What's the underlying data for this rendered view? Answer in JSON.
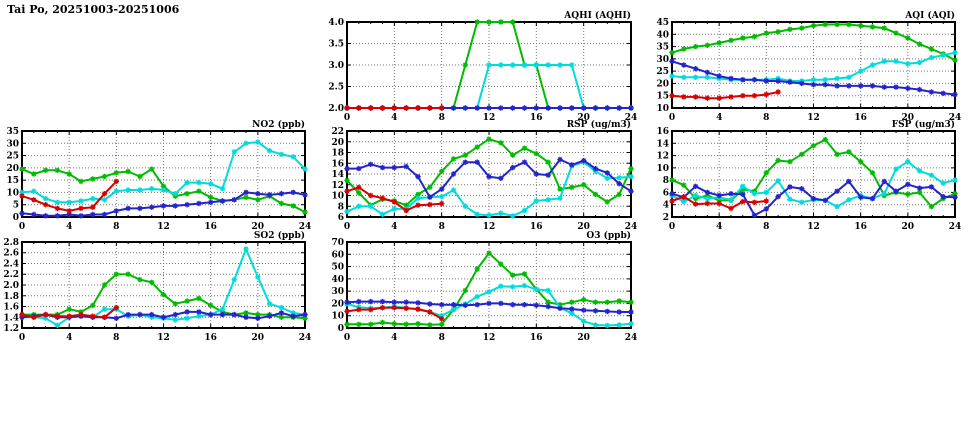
{
  "page": {
    "title": "Tai Po, 20251003-20251006"
  },
  "colors": {
    "red": "#d80000",
    "green": "#00bb00",
    "blue": "#2424cc",
    "cyan": "#00dcdc"
  },
  "chart_data": [
    {
      "type": "line",
      "key": "aqhi",
      "title": "AQHI (AQHI)",
      "xlabel": "",
      "ylabel": "",
      "grid": true,
      "legend": "none",
      "xlim": [
        0,
        24
      ],
      "ylim": [
        2.0,
        4.0
      ],
      "xticks": [
        0,
        4,
        8,
        12,
        16,
        20,
        24
      ],
      "yticks": [
        2.0,
        2.5,
        3.0,
        3.5,
        4.0
      ],
      "ytick_labels": [
        "2.0",
        "2.5",
        "3.0",
        "3.5",
        "4.0"
      ],
      "series": [
        {
          "name": "green",
          "color": "green",
          "start": 0,
          "values": [
            2,
            2,
            2,
            2,
            2,
            2,
            2,
            2,
            2,
            2,
            3,
            4,
            4,
            4,
            4,
            3,
            3,
            2,
            2,
            2,
            2,
            2,
            2,
            2,
            2
          ]
        },
        {
          "name": "cyan",
          "color": "cyan",
          "start": 0,
          "values": [
            2,
            2,
            2,
            2,
            2,
            2,
            2,
            2,
            2,
            2,
            2,
            2,
            3,
            3,
            3,
            3,
            3,
            3,
            3,
            3,
            2,
            2,
            2,
            2,
            2
          ]
        },
        {
          "name": "blue",
          "color": "blue",
          "start": 0,
          "values": [
            2,
            2,
            2,
            2,
            2,
            2,
            2,
            2,
            2,
            2,
            2,
            2,
            2,
            2,
            2,
            2,
            2,
            2,
            2,
            2,
            2,
            2,
            2,
            2,
            2
          ]
        },
        {
          "name": "red",
          "color": "red",
          "start": 0,
          "values": [
            2,
            2,
            2,
            2,
            2,
            2,
            2,
            2,
            2
          ]
        }
      ]
    },
    {
      "type": "line",
      "key": "aqi",
      "title": "AQI (AQI)",
      "xlabel": "",
      "ylabel": "",
      "grid": true,
      "legend": "none",
      "xlim": [
        0,
        24
      ],
      "ylim": [
        10,
        45
      ],
      "xticks": [
        0,
        4,
        8,
        12,
        16,
        20,
        24
      ],
      "yticks": [
        10,
        15,
        20,
        25,
        30,
        35,
        40,
        45
      ],
      "ytick_labels": [
        "10",
        "15",
        "20",
        "25",
        "30",
        "35",
        "40",
        "45"
      ],
      "series": [
        {
          "name": "green",
          "color": "green",
          "start": 0,
          "values": [
            32.5,
            34,
            35,
            35.5,
            36.5,
            37.5,
            38.5,
            39,
            40.5,
            41,
            42,
            42.5,
            43.5,
            44,
            44,
            44,
            43.5,
            43,
            42.5,
            40.5,
            38.5,
            36,
            34,
            32,
            29.5
          ]
        },
        {
          "name": "cyan",
          "color": "cyan",
          "start": 0,
          "values": [
            23,
            22.5,
            22.5,
            22.5,
            22,
            21.5,
            21.5,
            21.5,
            21.5,
            22,
            21,
            21,
            21.5,
            21.5,
            22,
            22.5,
            25,
            27.5,
            29,
            29,
            28,
            28.5,
            30.5,
            31.5,
            32.5
          ]
        },
        {
          "name": "blue",
          "color": "blue",
          "start": 0,
          "values": [
            29,
            27.5,
            26,
            24.5,
            23,
            22,
            21.5,
            21.5,
            21,
            21,
            20.5,
            20,
            19.5,
            19.5,
            19,
            19,
            19,
            19,
            18.5,
            18.5,
            18,
            17.5,
            16.5,
            16,
            15.5
          ]
        },
        {
          "name": "red",
          "color": "red",
          "start": 0,
          "values": [
            15,
            14.5,
            14.5,
            14,
            14,
            14.5,
            15,
            15,
            15.5,
            16.5
          ]
        }
      ]
    },
    {
      "type": "line",
      "key": "no2",
      "title": "NO2 (ppb)",
      "xlabel": "",
      "ylabel": "",
      "grid": true,
      "legend": "none",
      "xlim": [
        0,
        24
      ],
      "ylim": [
        0,
        35
      ],
      "xticks": [
        0,
        4,
        8,
        12,
        16,
        20,
        24
      ],
      "yticks": [
        0,
        5,
        10,
        15,
        20,
        25,
        30,
        35
      ],
      "ytick_labels": [
        "0",
        "5",
        "10",
        "15",
        "20",
        "25",
        "30",
        "35"
      ],
      "series": [
        {
          "name": "green",
          "color": "green",
          "start": 0,
          "values": [
            19.5,
            17.5,
            19,
            19,
            17.5,
            14.5,
            15.5,
            16.5,
            18,
            18.5,
            16.5,
            19.5,
            12.5,
            8.5,
            9.5,
            10.5,
            8,
            6.5,
            7,
            8,
            7,
            8.5,
            5.5,
            4.5,
            2
          ]
        },
        {
          "name": "cyan",
          "color": "cyan",
          "start": 0,
          "values": [
            10,
            10.5,
            7.5,
            6,
            6,
            6.5,
            7.5,
            7,
            10.5,
            11,
            11,
            11.5,
            11,
            9.5,
            14,
            14,
            13.5,
            11.5,
            26.5,
            30,
            30.5,
            27,
            25.5,
            24.5,
            19.5
          ]
        },
        {
          "name": "blue",
          "color": "blue",
          "start": 0,
          "values": [
            1.5,
            1,
            0.5,
            0.5,
            1,
            0.5,
            1,
            1,
            2.5,
            3.5,
            3.5,
            4,
            4.5,
            4.5,
            5,
            5.5,
            6,
            6.5,
            7,
            10,
            9.5,
            9,
            9.5,
            10,
            9
          ]
        },
        {
          "name": "red",
          "color": "red",
          "start": 0,
          "values": [
            8.5,
            7,
            5,
            3.5,
            2.5,
            3.5,
            4,
            9.5,
            14.5
          ]
        }
      ]
    },
    {
      "type": "line",
      "key": "rsp",
      "title": "RSP (ug/m3)",
      "xlabel": "",
      "ylabel": "",
      "grid": true,
      "legend": "none",
      "xlim": [
        0,
        24
      ],
      "ylim": [
        6,
        22
      ],
      "xticks": [
        0,
        4,
        8,
        12,
        16,
        20,
        24
      ],
      "yticks": [
        6,
        8,
        10,
        12,
        14,
        16,
        18,
        20,
        22
      ],
      "ytick_labels": [
        "6",
        "8",
        "10",
        "12",
        "14",
        "16",
        "18",
        "20",
        "22"
      ],
      "series": [
        {
          "name": "green",
          "color": "green",
          "start": 0,
          "values": [
            12.8,
            10.5,
            8.2,
            9.3,
            9,
            8.2,
            10.2,
            11.5,
            14.5,
            16.8,
            17.5,
            19,
            20.5,
            19.8,
            17.5,
            18.8,
            17.8,
            16.2,
            11.2,
            11.5,
            12,
            10.2,
            8.8,
            10.2,
            15
          ]
        },
        {
          "name": "cyan",
          "color": "cyan",
          "start": 0,
          "values": [
            7,
            8,
            8,
            6.5,
            7.5,
            7.5,
            9.5,
            9.7,
            9.8,
            11,
            8,
            6.5,
            6.3,
            6.7,
            6.2,
            7.2,
            9,
            9.2,
            9.5,
            15.5,
            16.2,
            14.5,
            13.2,
            13.3,
            13.5
          ]
        },
        {
          "name": "blue",
          "color": "blue",
          "start": 0,
          "values": [
            15,
            15,
            15.8,
            15.2,
            15.2,
            15.4,
            13.5,
            9.7,
            11.2,
            14,
            16.2,
            16.2,
            13.5,
            13.2,
            15.2,
            16.2,
            14,
            13.8,
            16.7,
            15.7,
            16.5,
            15,
            14.2,
            12.2,
            10.8
          ]
        },
        {
          "name": "red",
          "color": "red",
          "start": 0,
          "values": [
            10.8,
            11.5,
            10,
            9.5,
            8.8,
            7.2,
            8.2,
            8.3,
            8.5
          ]
        }
      ]
    },
    {
      "type": "line",
      "key": "fsp",
      "title": "FSP (ug/m3)",
      "xlabel": "",
      "ylabel": "",
      "grid": true,
      "legend": "none",
      "xlim": [
        0,
        24
      ],
      "ylim": [
        2,
        16
      ],
      "xticks": [
        0,
        4,
        8,
        12,
        16,
        20,
        24
      ],
      "yticks": [
        2,
        4,
        6,
        8,
        10,
        12,
        14,
        16
      ],
      "ytick_labels": [
        "2",
        "4",
        "6",
        "8",
        "10",
        "12",
        "14",
        "16"
      ],
      "series": [
        {
          "name": "green",
          "color": "green",
          "start": 0,
          "values": [
            8,
            7.2,
            5,
            5.5,
            4.7,
            4.7,
            6.5,
            6.2,
            9.2,
            11.2,
            11,
            12.2,
            13.6,
            14.6,
            12.2,
            12.6,
            11,
            9.2,
            5.5,
            6,
            5.7,
            6,
            3.7,
            5,
            5.8
          ]
        },
        {
          "name": "cyan",
          "color": "cyan",
          "start": 0,
          "values": [
            5.5,
            4.5,
            5.5,
            5,
            5.2,
            4.8,
            7,
            5.8,
            6,
            7.9,
            4.9,
            4.4,
            4.8,
            4.7,
            3.7,
            4.8,
            5.5,
            5,
            5.8,
            9.8,
            11,
            9.5,
            8.8,
            7.5,
            8
          ]
        },
        {
          "name": "blue",
          "color": "blue",
          "start": 0,
          "values": [
            5.8,
            5.2,
            7,
            6,
            5.5,
            5.8,
            5.7,
            2.3,
            3.3,
            5.3,
            6.9,
            6.6,
            5,
            4.7,
            6.2,
            7.8,
            5.2,
            5,
            7.8,
            6.2,
            7.3,
            6.7,
            6.9,
            5.3,
            5.2
          ]
        },
        {
          "name": "red",
          "color": "red",
          "start": 0,
          "values": [
            4.6,
            5.3,
            4.1,
            4.2,
            4.2,
            3.4,
            4.5,
            4.4,
            4.6
          ]
        }
      ]
    },
    {
      "type": "line",
      "key": "so2",
      "title": "SO2 (ppb)",
      "xlabel": "",
      "ylabel": "",
      "grid": true,
      "legend": "none",
      "xlim": [
        0,
        24
      ],
      "ylim": [
        1.2,
        2.8
      ],
      "xticks": [
        0,
        4,
        8,
        12,
        16,
        20,
        24
      ],
      "yticks": [
        1.2,
        1.4,
        1.6,
        1.8,
        2.0,
        2.2,
        2.4,
        2.6,
        2.8
      ],
      "ytick_labels": [
        "1.2",
        "1.4",
        "1.6",
        "1.8",
        "2.0",
        "2.2",
        "2.4",
        "2.6",
        "2.8"
      ],
      "series": [
        {
          "name": "green",
          "color": "green",
          "start": 0,
          "values": [
            1.45,
            1.45,
            1.45,
            1.45,
            1.55,
            1.5,
            1.62,
            2.0,
            2.2,
            2.2,
            2.1,
            2.05,
            1.82,
            1.65,
            1.7,
            1.75,
            1.62,
            1.5,
            1.45,
            1.48,
            1.45,
            1.45,
            1.4,
            1.4,
            1.38
          ]
        },
        {
          "name": "cyan",
          "color": "cyan",
          "start": 0,
          "values": [
            1.4,
            1.4,
            1.38,
            1.25,
            1.4,
            1.42,
            1.4,
            1.55,
            1.55,
            1.42,
            1.45,
            1.4,
            1.38,
            1.35,
            1.38,
            1.42,
            1.45,
            1.55,
            2.1,
            2.67,
            2.15,
            1.65,
            1.58,
            1.48,
            1.45
          ]
        },
        {
          "name": "blue",
          "color": "blue",
          "start": 0,
          "values": [
            1.4,
            1.42,
            1.45,
            1.4,
            1.4,
            1.42,
            1.4,
            1.4,
            1.38,
            1.45,
            1.45,
            1.45,
            1.4,
            1.45,
            1.5,
            1.5,
            1.45,
            1.45,
            1.45,
            1.4,
            1.38,
            1.42,
            1.48,
            1.42,
            1.45
          ]
        },
        {
          "name": "red",
          "color": "red",
          "start": 0,
          "values": [
            1.45,
            1.4,
            1.45,
            1.42,
            1.42,
            1.45,
            1.42,
            1.4,
            1.58
          ]
        }
      ]
    },
    {
      "type": "line",
      "key": "o3",
      "title": "O3 (ppb)",
      "xlabel": "",
      "ylabel": "",
      "grid": true,
      "legend": "none",
      "xlim": [
        0,
        24
      ],
      "ylim": [
        0,
        70
      ],
      "xticks": [
        0,
        4,
        8,
        12,
        16,
        20,
        24
      ],
      "yticks": [
        0,
        10,
        20,
        30,
        40,
        50,
        60,
        70
      ],
      "ytick_labels": [
        "0",
        "10",
        "20",
        "30",
        "40",
        "50",
        "60",
        "70"
      ],
      "series": [
        {
          "name": "green",
          "color": "green",
          "start": 0,
          "values": [
            3,
            3,
            3,
            4.5,
            3.5,
            3,
            3.5,
            2.5,
            3,
            15,
            30.5,
            48,
            61,
            52,
            43,
            44,
            31.5,
            21,
            19,
            21,
            23,
            21,
            21,
            22,
            21
          ]
        },
        {
          "name": "cyan",
          "color": "cyan",
          "start": 0,
          "values": [
            19.5,
            17,
            16,
            16.5,
            17.5,
            16.5,
            15,
            13,
            10,
            15,
            19.5,
            25.5,
            29.5,
            34,
            33.5,
            34.5,
            31.5,
            30.5,
            16.5,
            12,
            5.5,
            2.5,
            2,
            2.5,
            3.5
          ]
        },
        {
          "name": "blue",
          "color": "blue",
          "start": 0,
          "values": [
            21,
            21.5,
            21.5,
            21.5,
            21,
            21,
            20.5,
            19.5,
            19,
            19,
            18.5,
            19,
            20,
            20,
            19,
            19,
            18.5,
            17.5,
            16,
            15.5,
            14.5,
            14,
            13.5,
            13,
            13
          ]
        },
        {
          "name": "red",
          "color": "red",
          "start": 0,
          "values": [
            13.5,
            15,
            15,
            16.5,
            16.5,
            16,
            15.5,
            13,
            7.5
          ]
        }
      ]
    }
  ]
}
